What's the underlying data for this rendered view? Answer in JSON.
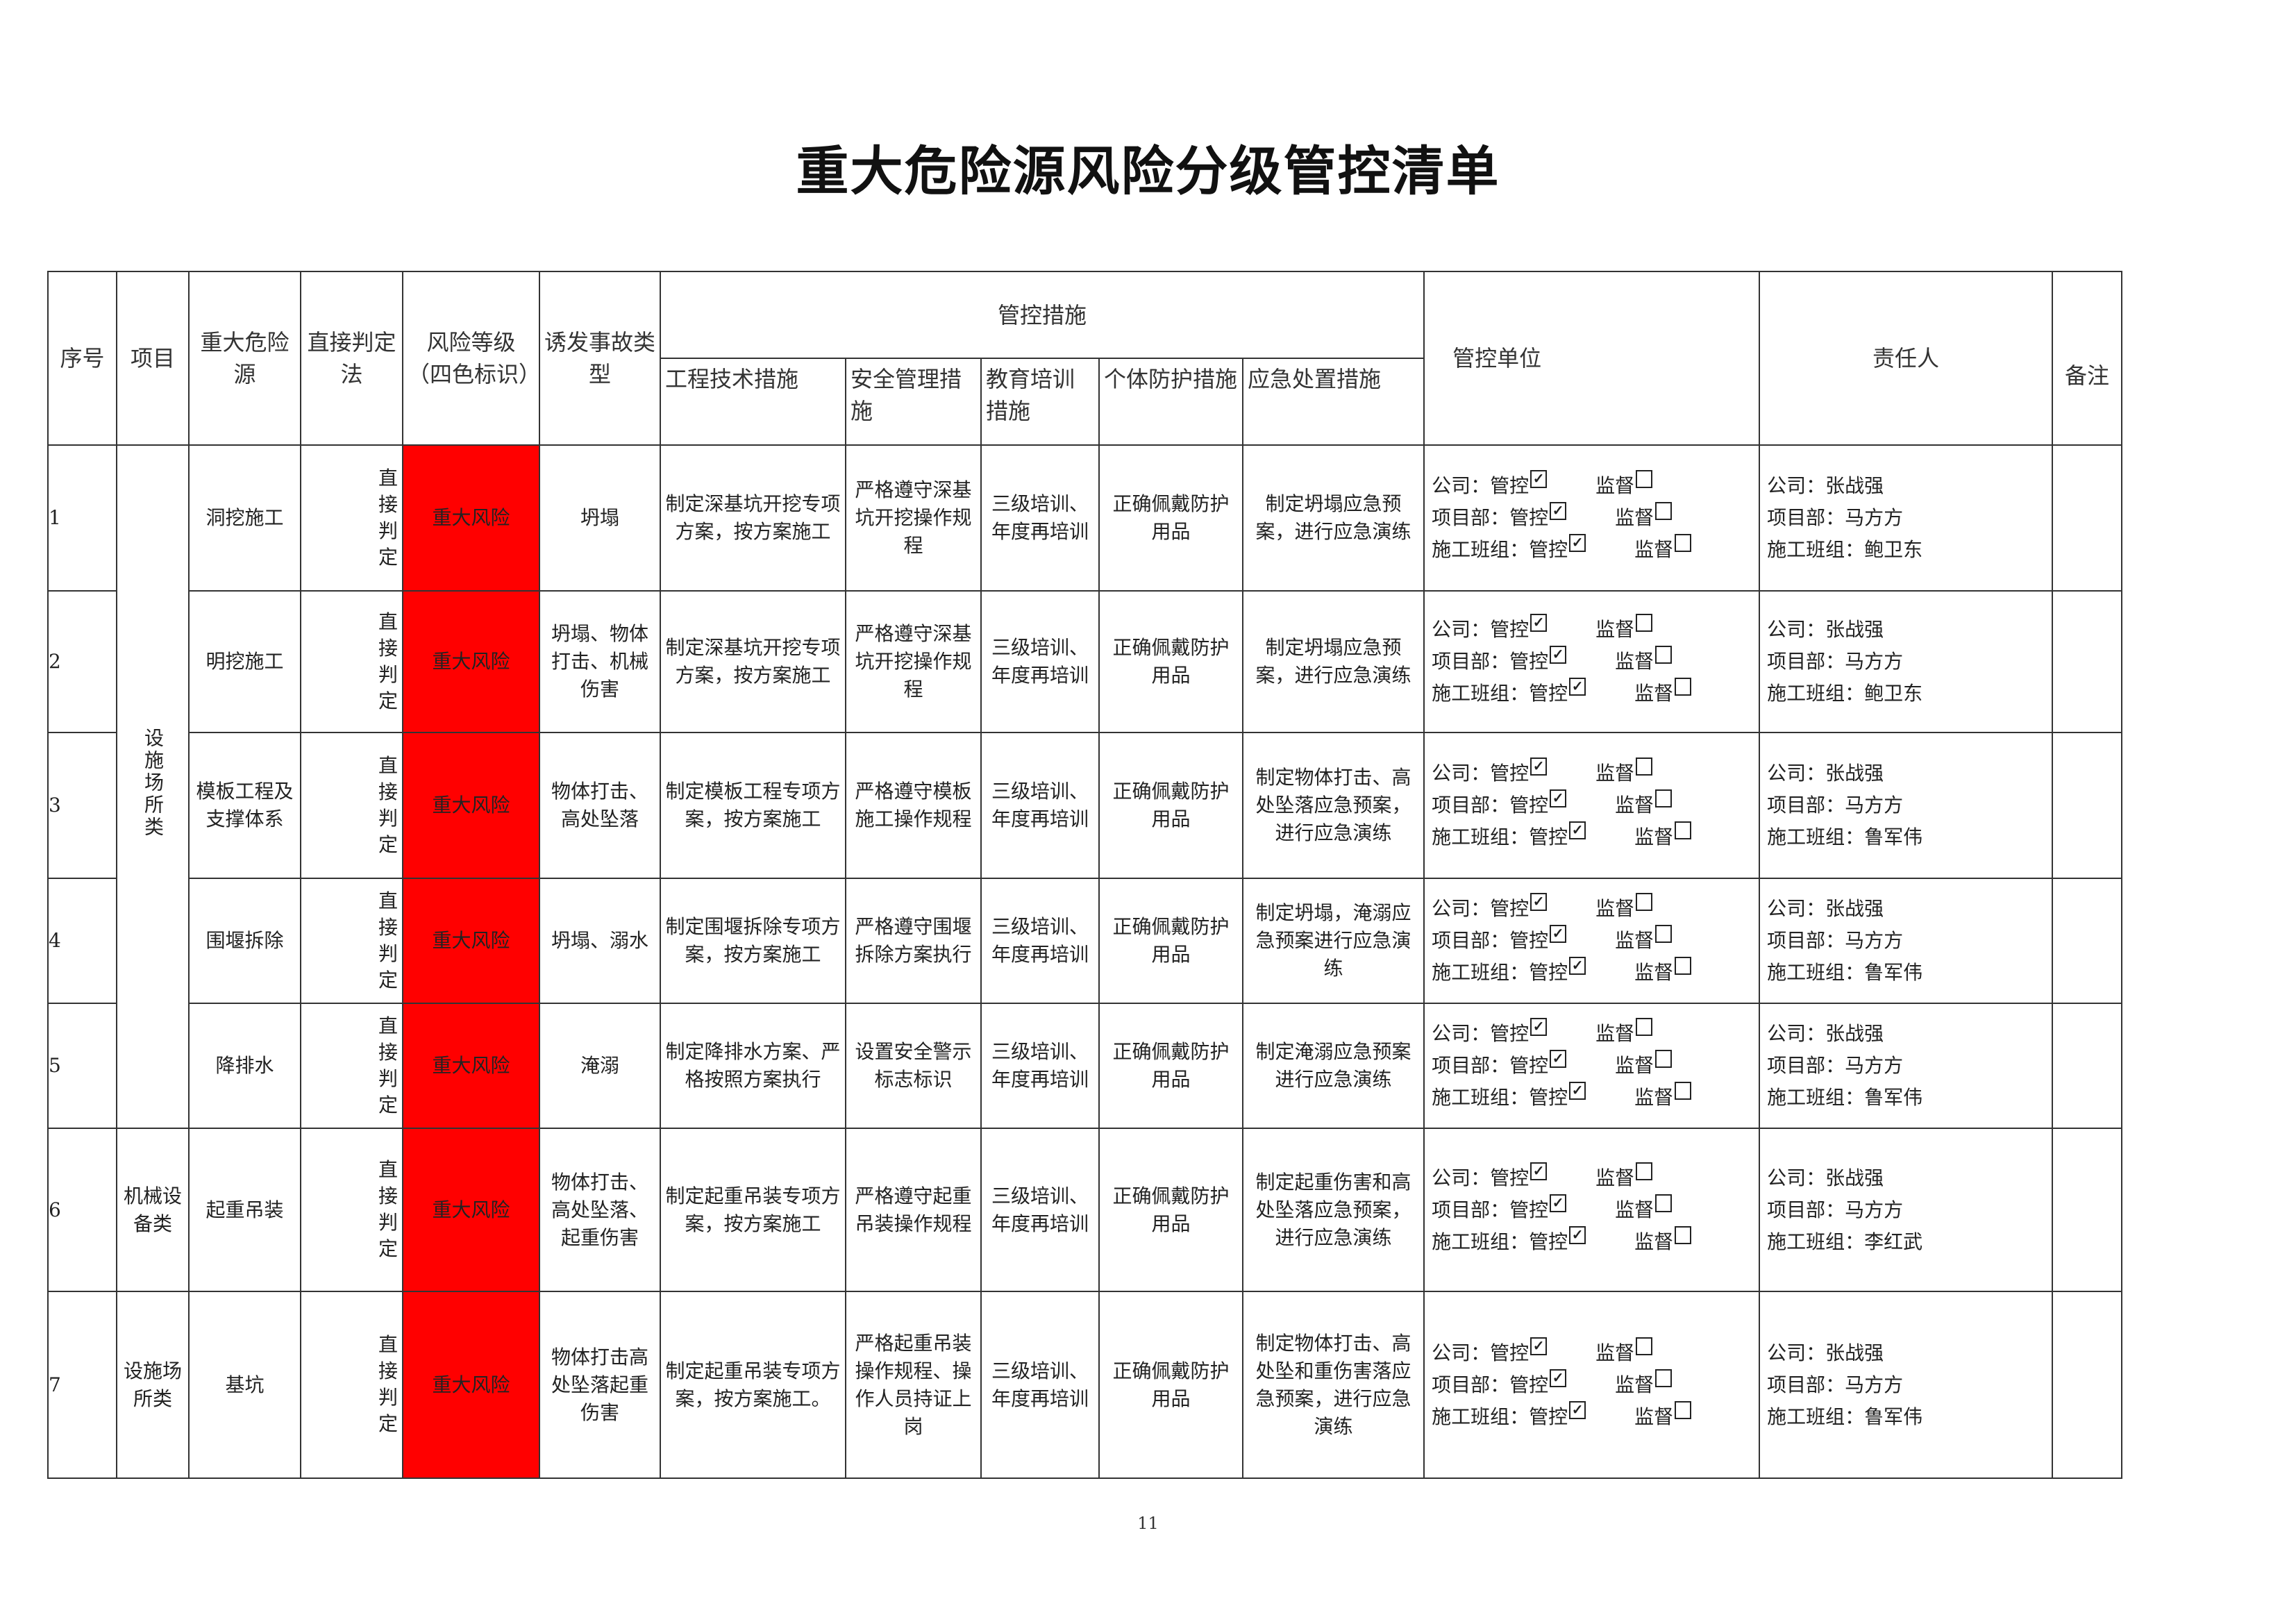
{
  "title": "重大危险源风险分级管控清单",
  "headers": {
    "seq": "序号",
    "project": "项目",
    "hazard": "重大危险源",
    "judge": "直接判定法",
    "level": "风险等级（四色标识）",
    "accident": "诱发事故类型",
    "measures": "管控措施",
    "measures_sub": [
      "工程技术措施",
      "安全管理措施",
      "教育培训措施",
      "个体防护措施",
      "应急处置措施"
    ],
    "unit": "管控单位",
    "person": "责任人",
    "remark": "备注"
  },
  "unit_labels": {
    "company": "公司：管控",
    "project": "项目部：管控",
    "team": "施工班组：管控",
    "supervise": "监督"
  },
  "checkboxes": {
    "control": true,
    "supervise": false
  },
  "risk_color": "#ff0000",
  "projects": [
    {
      "label": "设施场所类",
      "rows": 5
    },
    {
      "label": "机械设备类",
      "rows": 1
    },
    {
      "label": "设施场所类",
      "rows": 1
    }
  ],
  "rows": [
    {
      "seq": "1",
      "hazard": "洞挖施工",
      "judge": "直接判定",
      "level": "重大风险",
      "accident": "坍塌",
      "m1": "制定深基坑开挖专项方案，按方案施工",
      "m2": "严格遵守深基坑开挖操作规程",
      "m3": "三级培训、年度再培训",
      "m4": "正确佩戴防护用品",
      "m5": "制定坍塌应急预案，进行应急演练",
      "p_company": "公司：张战强",
      "p_project": "项目部：马方方",
      "p_team": "施工班组：鲍卫东",
      "remark": ""
    },
    {
      "seq": "2",
      "hazard": "明挖施工",
      "judge": "直接判定",
      "level": "重大风险",
      "accident": "坍塌、物体打击、机械伤害",
      "m1": "制定深基坑开挖专项方案，按方案施工",
      "m2": "严格遵守深基坑开挖操作规程",
      "m3": "三级培训、年度再培训",
      "m4": "正确佩戴防护用品",
      "m5": "制定坍塌应急预案，进行应急演练",
      "p_company": "公司：张战强",
      "p_project": "项目部：马方方",
      "p_team": "施工班组：鲍卫东",
      "remark": ""
    },
    {
      "seq": "3",
      "hazard": "模板工程及支撑体系",
      "judge": "直接判定",
      "level": "重大风险",
      "accident": "物体打击、高处坠落",
      "m1": "制定模板工程专项方案，按方案施工",
      "m2": "严格遵守模板施工操作规程",
      "m3": "三级培训、年度再培训",
      "m4": "正确佩戴防护用品",
      "m5": "制定物体打击、高处坠落应急预案，进行应急演练",
      "p_company": "公司：张战强",
      "p_project": "项目部：马方方",
      "p_team": "施工班组：鲁军伟",
      "remark": ""
    },
    {
      "seq": "4",
      "hazard": "围堰拆除",
      "judge": "直接判定",
      "level": "重大风险",
      "accident": "坍塌、溺水",
      "m1": "制定围堰拆除专项方案，按方案施工",
      "m2": "严格遵守围堰拆除方案执行",
      "m3": "三级培训、年度再培训",
      "m4": "正确佩戴防护用品",
      "m5": "制定坍塌，淹溺应急预案进行应急演练",
      "p_company": "公司：张战强",
      "p_project": "项目部：马方方",
      "p_team": "施工班组：鲁军伟",
      "remark": ""
    },
    {
      "seq": "5",
      "hazard": "降排水",
      "judge": "直接判定",
      "level": "重大风险",
      "accident": "淹溺",
      "m1": "制定降排水方案、严格按照方案执行",
      "m2": "设置安全警示标志标识",
      "m3": "三级培训、年度再培训",
      "m4": "正确佩戴防护用品",
      "m5": "制定淹溺应急预案进行应急演练",
      "p_company": "公司：张战强",
      "p_project": "项目部：马方方",
      "p_team": "施工班组：鲁军伟",
      "remark": ""
    },
    {
      "seq": "6",
      "hazard": "起重吊装",
      "judge": "直接判定",
      "level": "重大风险",
      "accident": "物体打击、高处坠落、起重伤害",
      "m1": "制定起重吊装专项方案，按方案施工",
      "m2": "严格遵守起重吊装操作规程",
      "m3": "三级培训、年度再培训",
      "m4": "正确佩戴防护用品",
      "m5": "制定起重伤害和高处坠落应急预案，进行应急演练",
      "p_company": "公司：张战强",
      "p_project": "项目部：马方方",
      "p_team": "施工班组：李红武",
      "remark": ""
    },
    {
      "seq": "7",
      "hazard": "基坑",
      "judge": "直接判定",
      "level": "重大风险",
      "accident": "物体打击高处坠落起重伤害",
      "m1": "制定起重吊装专项方案，按方案施工。",
      "m2": "严格起重吊装操作规程、操作人员持证上岗",
      "m3": "三级培训、年度再培训",
      "m4": "正确佩戴防护用品",
      "m5": "制定物体打击、高处坠和重伤害落应急预案，进行应急演练",
      "p_company": "公司：张战强",
      "p_project": "项目部：马方方",
      "p_team": "施工班组：鲁军伟",
      "remark": ""
    }
  ],
  "page_number": "11"
}
